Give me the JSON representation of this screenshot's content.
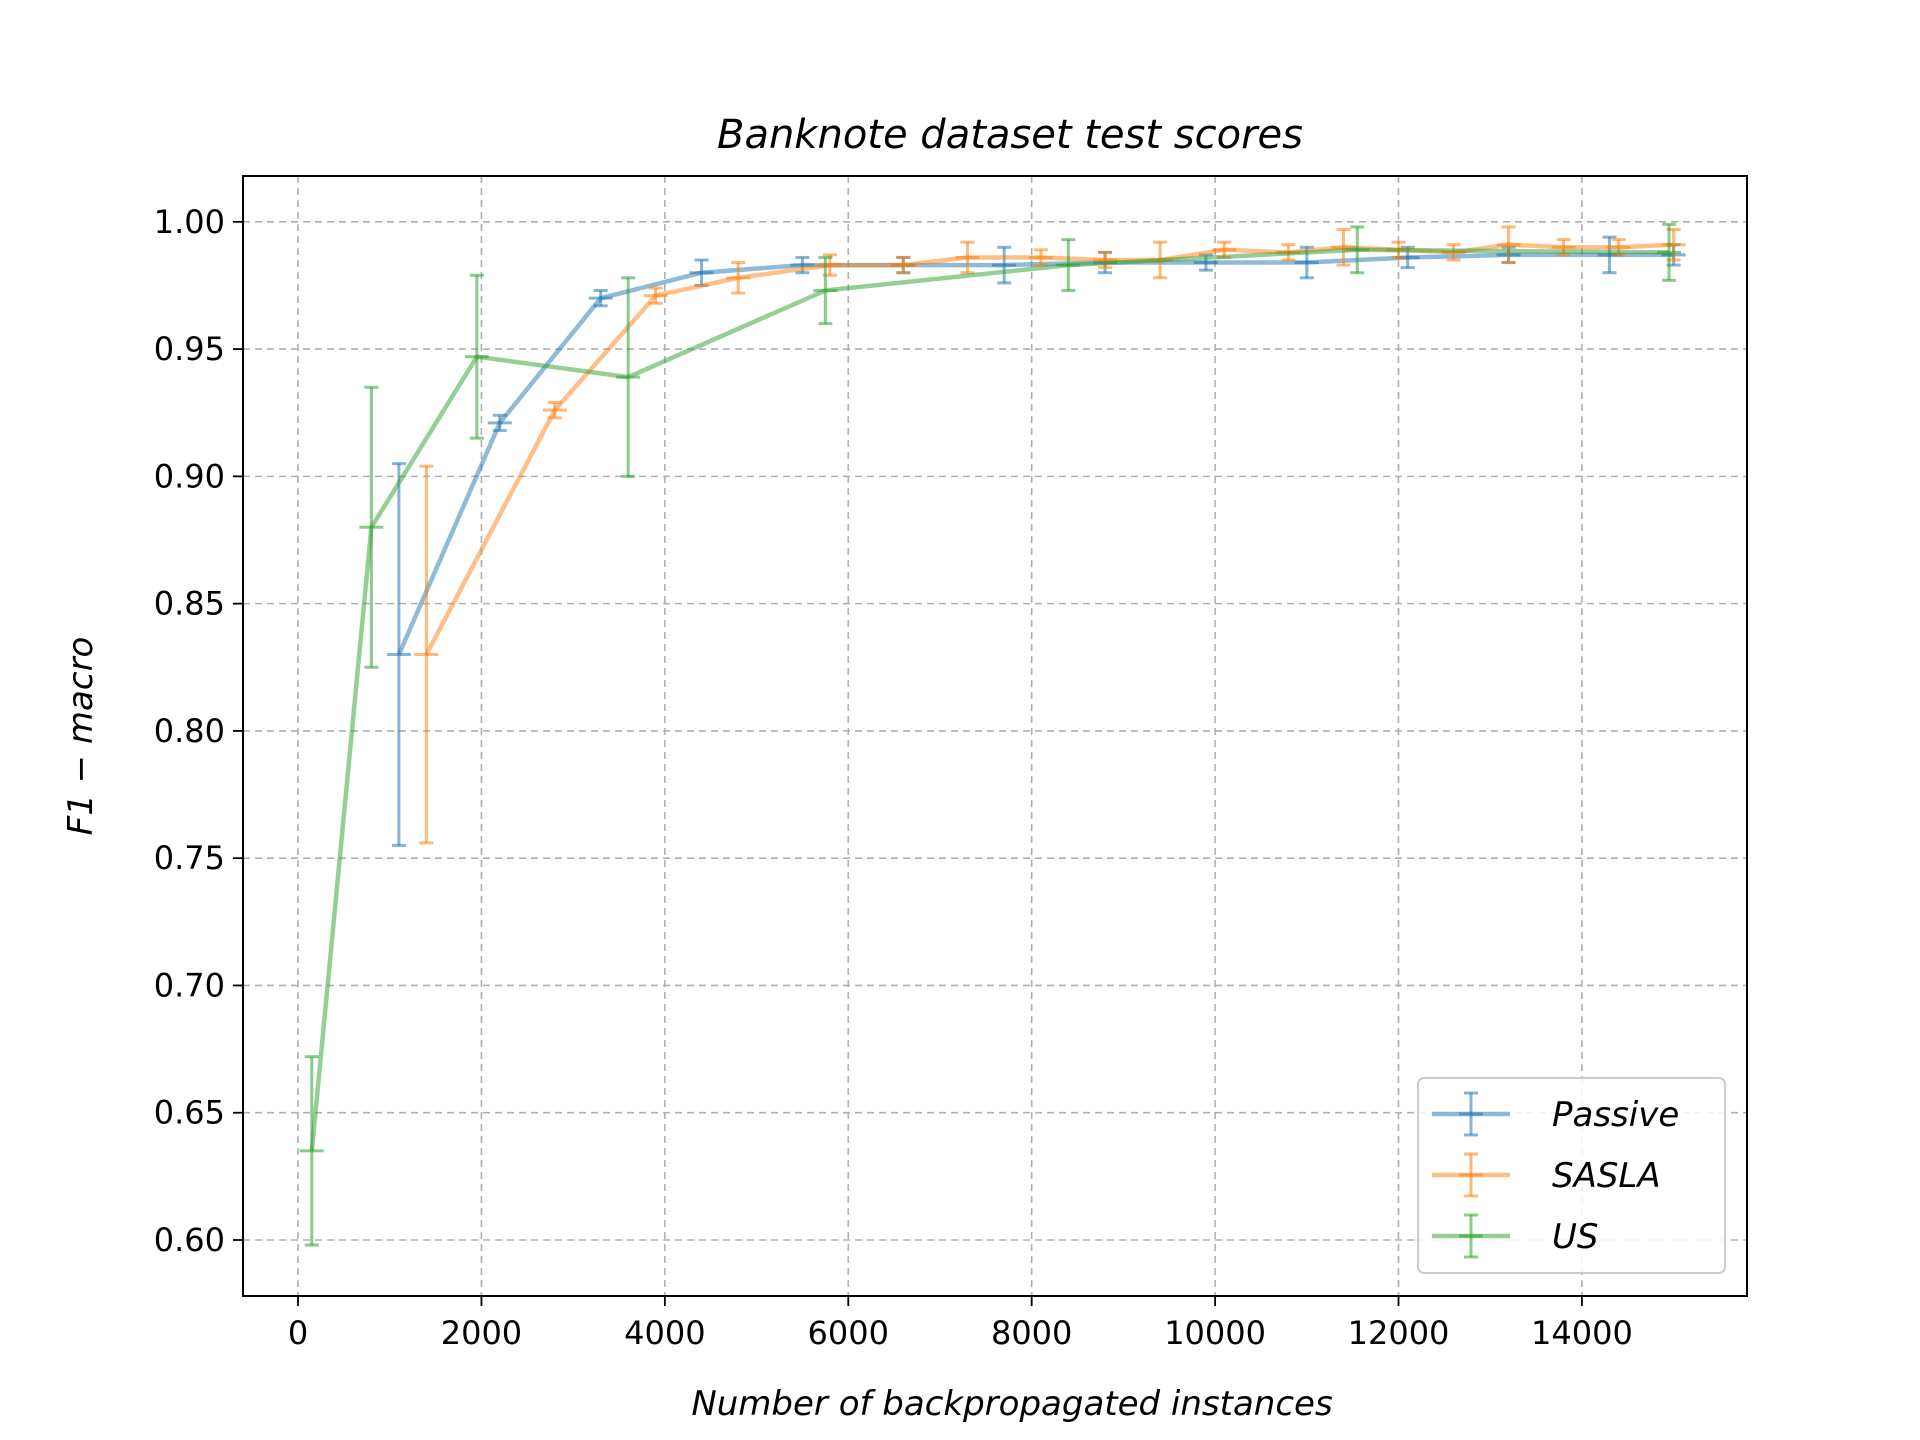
{
  "chart_data": {
    "type": "line",
    "title": "Banknote dataset test scores",
    "xlabel": "Number of backpropagated instances",
    "ylabel": "F1 − macro",
    "xlim": [
      -600,
      15800
    ],
    "ylim": [
      0.578,
      1.018
    ],
    "xticks": [
      0,
      2000,
      4000,
      6000,
      8000,
      10000,
      12000,
      14000
    ],
    "yticks": [
      0.6,
      0.65,
      0.7,
      0.75,
      0.8,
      0.85,
      0.9,
      0.95,
      1.0
    ],
    "grid": true,
    "legend_position": "lower-right",
    "series": [
      {
        "name": "Passive",
        "color": "#1f77b4",
        "points": [
          {
            "x": 1100,
            "y": 0.83,
            "err": 0.075
          },
          {
            "x": 2200,
            "y": 0.921,
            "err": 0.003
          },
          {
            "x": 3300,
            "y": 0.97,
            "err": 0.003
          },
          {
            "x": 4400,
            "y": 0.98,
            "err": 0.005
          },
          {
            "x": 5500,
            "y": 0.983,
            "err": 0.003
          },
          {
            "x": 6600,
            "y": 0.983,
            "err": 0.003
          },
          {
            "x": 7700,
            "y": 0.983,
            "err": 0.007
          },
          {
            "x": 8800,
            "y": 0.984,
            "err": 0.004
          },
          {
            "x": 9900,
            "y": 0.984,
            "err": 0.003
          },
          {
            "x": 11000,
            "y": 0.984,
            "err": 0.006
          },
          {
            "x": 12100,
            "y": 0.986,
            "err": 0.004
          },
          {
            "x": 13200,
            "y": 0.987,
            "err": 0.003
          },
          {
            "x": 14300,
            "y": 0.987,
            "err": 0.007
          },
          {
            "x": 15000,
            "y": 0.987,
            "err": 0.004
          }
        ]
      },
      {
        "name": "SASLA",
        "color": "#ff7f0e",
        "points": [
          {
            "x": 1400,
            "y": 0.83,
            "err": 0.074
          },
          {
            "x": 2800,
            "y": 0.926,
            "err": 0.003
          },
          {
            "x": 3900,
            "y": 0.971,
            "err": 0.003
          },
          {
            "x": 4800,
            "y": 0.978,
            "err": 0.006
          },
          {
            "x": 5800,
            "y": 0.983,
            "err": 0.004
          },
          {
            "x": 6600,
            "y": 0.983,
            "err": 0.003
          },
          {
            "x": 7300,
            "y": 0.986,
            "err": 0.006
          },
          {
            "x": 8100,
            "y": 0.986,
            "err": 0.003
          },
          {
            "x": 8800,
            "y": 0.985,
            "err": 0.003
          },
          {
            "x": 9400,
            "y": 0.985,
            "err": 0.007
          },
          {
            "x": 10100,
            "y": 0.989,
            "err": 0.003
          },
          {
            "x": 10800,
            "y": 0.988,
            "err": 0.003
          },
          {
            "x": 11400,
            "y": 0.99,
            "err": 0.007
          },
          {
            "x": 12000,
            "y": 0.989,
            "err": 0.003
          },
          {
            "x": 12600,
            "y": 0.988,
            "err": 0.003
          },
          {
            "x": 13200,
            "y": 0.991,
            "err": 0.007
          },
          {
            "x": 13800,
            "y": 0.99,
            "err": 0.003
          },
          {
            "x": 14400,
            "y": 0.99,
            "err": 0.003
          },
          {
            "x": 15000,
            "y": 0.991,
            "err": 0.006
          }
        ]
      },
      {
        "name": "US",
        "color": "#2ca02c",
        "points": [
          {
            "x": 150,
            "y": 0.635,
            "err": 0.037
          },
          {
            "x": 800,
            "y": 0.88,
            "err": 0.055
          },
          {
            "x": 1950,
            "y": 0.947,
            "err": 0.032
          },
          {
            "x": 3600,
            "y": 0.939,
            "err": 0.039
          },
          {
            "x": 5750,
            "y": 0.973,
            "err": 0.013
          },
          {
            "x": 8400,
            "y": 0.983,
            "err": 0.01
          },
          {
            "x": 11550,
            "y": 0.989,
            "err": 0.009
          },
          {
            "x": 14950,
            "y": 0.988,
            "err": 0.011
          }
        ]
      }
    ]
  }
}
